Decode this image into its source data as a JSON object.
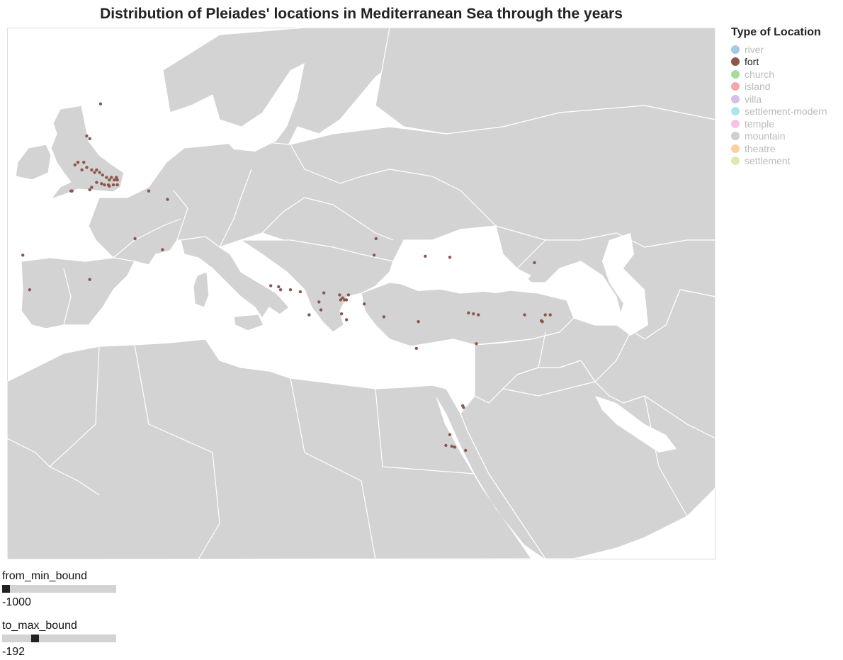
{
  "chart_data": {
    "type": "scatter",
    "title": "Distribution of Pleiades' locations in Mediterranean Sea through the years",
    "xlabel": "",
    "ylabel": "",
    "legend": {
      "title": "Type of Location",
      "placement": "right",
      "entries": [
        {
          "label": "river",
          "color": "#a3c8e8",
          "active": false
        },
        {
          "label": "fort",
          "color": "#8c564b",
          "active": true
        },
        {
          "label": "church",
          "color": "#a6dba0",
          "active": false
        },
        {
          "label": "island",
          "color": "#f4a6a8",
          "active": false
        },
        {
          "label": "villa",
          "color": "#d3bfe8",
          "active": false
        },
        {
          "label": "settlement-modern",
          "color": "#a9e7ef",
          "active": false
        },
        {
          "label": "temple",
          "color": "#f7c2e8",
          "active": false
        },
        {
          "label": "mountain",
          "color": "#cfcfcf",
          "active": false
        },
        {
          "label": "theatre",
          "color": "#fdcf9e",
          "active": false
        },
        {
          "label": "settlement",
          "color": "#e3e6b2",
          "active": false
        }
      ]
    },
    "map_extent": {
      "lon": [
        -11,
        61
      ],
      "lat": [
        12,
        64
      ]
    },
    "series": [
      {
        "name": "fort",
        "color": "#8c564b",
        "points": [
          [
            -1.5,
            59.1
          ],
          [
            -2.9,
            56.8
          ],
          [
            -2.6,
            56.6
          ],
          [
            -3.8,
            54.8
          ],
          [
            -3.2,
            54.8
          ],
          [
            -4.1,
            54.6
          ],
          [
            -2.9,
            54.4
          ],
          [
            -3.4,
            54.2
          ],
          [
            -1.9,
            54.2
          ],
          [
            -2.4,
            54.2
          ],
          [
            -1.6,
            54.0
          ],
          [
            -2.1,
            54.0
          ],
          [
            -1.3,
            53.8
          ],
          [
            -0.9,
            53.6
          ],
          [
            -0.4,
            53.6
          ],
          [
            0.1,
            53.6
          ],
          [
            -0.6,
            53.4
          ],
          [
            -0.1,
            53.4
          ],
          [
            0.2,
            53.4
          ],
          [
            -1.9,
            53.2
          ],
          [
            -1.4,
            53.1
          ],
          [
            -1.1,
            53.0
          ],
          [
            -0.7,
            53.0
          ],
          [
            0.2,
            53.0
          ],
          [
            -0.2,
            53.0
          ],
          [
            -0.6,
            52.9
          ],
          [
            -2.4,
            52.8
          ],
          [
            -4.5,
            52.5
          ],
          [
            -4.4,
            52.5
          ],
          [
            -2.6,
            52.6
          ],
          [
            3.4,
            52.5
          ],
          [
            5.3,
            51.8
          ],
          [
            2.0,
            48.4
          ],
          [
            4.8,
            47.4
          ],
          [
            -9.4,
            46.9
          ],
          [
            -2.6,
            44.6
          ],
          [
            -8.7,
            43.6
          ],
          [
            15.8,
            44.0
          ],
          [
            16.6,
            43.9
          ],
          [
            17.8,
            43.6
          ],
          [
            18.8,
            43.4
          ],
          [
            21.2,
            43.3
          ],
          [
            16.8,
            43.6
          ],
          [
            22.8,
            43.1
          ],
          [
            23.7,
            43.1
          ],
          [
            22.9,
            42.6
          ],
          [
            23.3,
            42.6
          ],
          [
            25.3,
            42.2
          ],
          [
            23.1,
            42.8
          ],
          [
            23.5,
            42.6
          ],
          [
            20.7,
            42.4
          ],
          [
            19.7,
            41.1
          ],
          [
            20.9,
            41.6
          ],
          [
            23.0,
            41.2
          ],
          [
            23.5,
            40.6
          ],
          [
            27.3,
            40.9
          ],
          [
            30.8,
            40.4
          ],
          [
            35.9,
            41.3
          ],
          [
            36.4,
            41.2
          ],
          [
            36.9,
            41.1
          ],
          [
            41.6,
            41.1
          ],
          [
            43.7,
            41.1
          ],
          [
            44.2,
            41.1
          ],
          [
            43.3,
            40.5
          ],
          [
            43.4,
            40.4
          ],
          [
            31.5,
            46.8
          ],
          [
            42.6,
            46.2
          ],
          [
            34.0,
            46.7
          ],
          [
            26.5,
            48.4
          ],
          [
            26.3,
            46.9
          ],
          [
            36.7,
            38.1
          ],
          [
            30.6,
            37.6
          ],
          [
            35.3,
            31.2
          ],
          [
            35.4,
            31.0
          ],
          [
            34.0,
            27.8
          ],
          [
            33.6,
            26.5
          ],
          [
            34.2,
            26.4
          ],
          [
            34.5,
            26.3
          ],
          [
            35.6,
            25.9
          ]
        ]
      }
    ]
  },
  "controls": {
    "min_label": "from_min_bound",
    "min_value": "-1000",
    "min_fraction": 0.0,
    "max_label": "to_max_bound",
    "max_value": "-192",
    "max_fraction": 0.27
  }
}
